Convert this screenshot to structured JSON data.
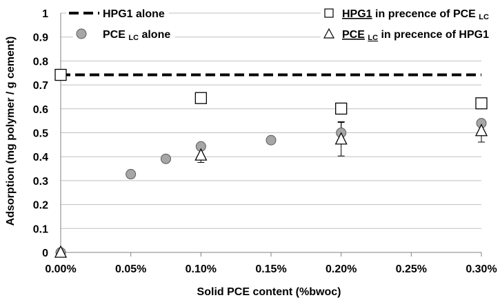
{
  "chart_data": {
    "type": "scatter",
    "xlabel": "Solid PCE content (%bwoc)",
    "ylabel": "Adsorption (mg polymer / g cement)",
    "xlim": [
      0,
      0.3
    ],
    "ylim": [
      0,
      1
    ],
    "x_ticks": [
      "0.00%",
      "0.05%",
      "0.10%",
      "0.15%",
      "0.20%",
      "0.25%",
      "0.30%"
    ],
    "y_ticks": [
      "0",
      "0.1",
      "0.2",
      "0.3",
      "0.4",
      "0.5",
      "0.6",
      "0.7",
      "0.8",
      "0.9",
      "1"
    ],
    "grid": "horizontal",
    "legend_position": "top",
    "series": [
      {
        "name": "HPG1 alone",
        "marker": "dashed-line",
        "color": "#000000",
        "x": [
          0,
          0.3
        ],
        "y": [
          0.742,
          0.742
        ]
      },
      {
        "name": "PCE LC alone",
        "marker": "circle",
        "color": "#a6a6a6",
        "x": [
          0,
          0.05,
          0.075,
          0.1,
          0.15,
          0.2,
          0.3
        ],
        "y": [
          0,
          0.327,
          0.391,
          0.443,
          0.469,
          0.5,
          0.54
        ],
        "error": [
          0,
          0,
          0,
          0,
          0,
          0.046,
          0
        ]
      },
      {
        "name": "HPG1 in precence of PCE LC",
        "marker": "square",
        "color": "#ffffff",
        "x": [
          0,
          0.1,
          0.2,
          0.3
        ],
        "y": [
          0.742,
          0.645,
          0.601,
          0.623
        ]
      },
      {
        "name": "PCE LC in precence of HPG1",
        "marker": "triangle",
        "color": "#ffffff",
        "x": [
          0,
          0.1,
          0.2,
          0.3
        ],
        "y": [
          0,
          0.406,
          0.473,
          0.508
        ],
        "error": [
          0,
          0.03,
          0.07,
          0.047
        ]
      }
    ],
    "legend": [
      {
        "marker": "dashed-line",
        "parts": [
          {
            "text": "HPG1 alone"
          }
        ]
      },
      {
        "marker": "circle",
        "parts": [
          {
            "text": "PCE "
          },
          {
            "text": "LC",
            "sub": true
          },
          {
            "text": " alone"
          }
        ]
      },
      {
        "marker": "square",
        "parts": [
          {
            "text": "HPG1",
            "underline": true
          },
          {
            "text": " in precence of PCE "
          },
          {
            "text": "LC",
            "sub": true
          }
        ]
      },
      {
        "marker": "triangle",
        "parts": [
          {
            "text": "PCE",
            "underline": true
          },
          {
            "text": " "
          },
          {
            "text": "LC",
            "sub": true,
            "underline": true
          },
          {
            "text": " in precence of HPG1"
          }
        ]
      }
    ]
  }
}
